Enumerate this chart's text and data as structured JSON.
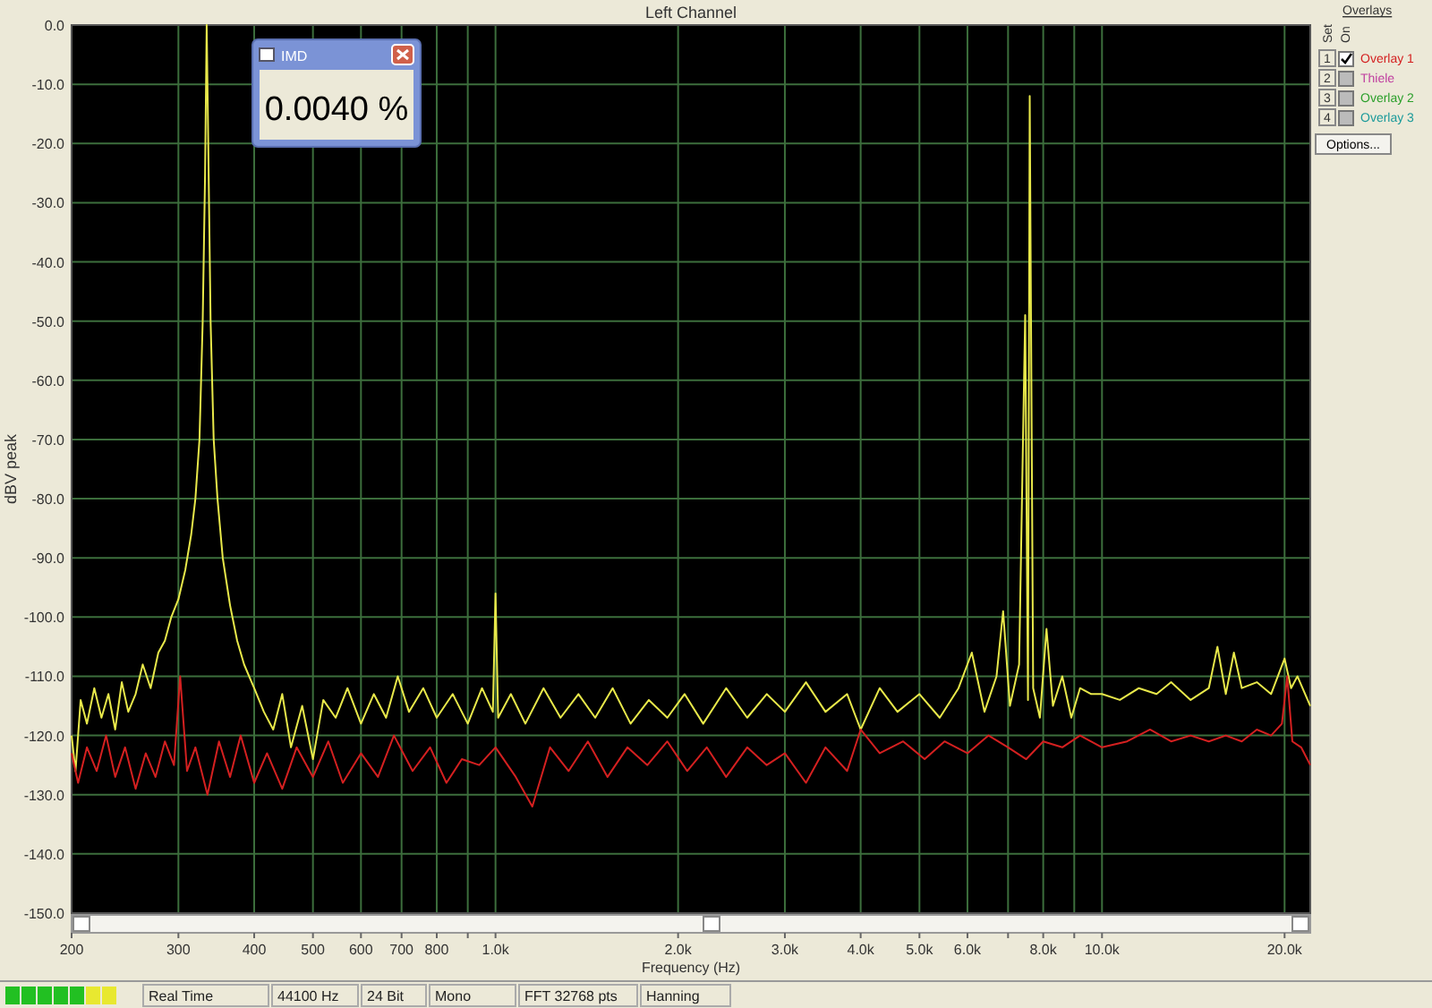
{
  "chart_data": {
    "type": "line",
    "title": "Left Channel",
    "xlabel": "Frequency (Hz)",
    "ylabel": "dBV peak",
    "log": "x",
    "grid": true,
    "legend": "top right",
    "marker": "none",
    "line_style": "solid",
    "xlim": [
      200,
      22050
    ],
    "ylim": [
      -150,
      0
    ],
    "xticks": [
      {
        "value": 200,
        "label": "200"
      },
      {
        "value": 300,
        "label": "300"
      },
      {
        "value": 400,
        "label": "400"
      },
      {
        "value": 500,
        "label": "500"
      },
      {
        "value": 600,
        "label": "600"
      },
      {
        "value": 700,
        "label": "700"
      },
      {
        "value": 800,
        "label": "800"
      },
      {
        "value": 900,
        "label": null
      },
      {
        "value": 1000,
        "label": "1.0k"
      },
      {
        "value": 2000,
        "label": "2.0k"
      },
      {
        "value": 3000,
        "label": "3.0k"
      },
      {
        "value": 4000,
        "label": "4.0k"
      },
      {
        "value": 5000,
        "label": "5.0k"
      },
      {
        "value": 6000,
        "label": "6.0k"
      },
      {
        "value": 7000,
        "label": null
      },
      {
        "value": 8000,
        "label": "8.0k"
      },
      {
        "value": 9000,
        "label": null
      },
      {
        "value": 10000,
        "label": "10.0k"
      },
      {
        "value": 20000,
        "label": "20.0k"
      }
    ],
    "yticks": [
      {
        "value": 0,
        "label": "0.0"
      },
      {
        "value": -10,
        "label": "-10.0"
      },
      {
        "value": -20,
        "label": "-20.0"
      },
      {
        "value": -30,
        "label": "-30.0"
      },
      {
        "value": -40,
        "label": "-40.0"
      },
      {
        "value": -50,
        "label": "-50.0"
      },
      {
        "value": -60,
        "label": "-60.0"
      },
      {
        "value": -70,
        "label": "-70.0"
      },
      {
        "value": -80,
        "label": "-80.0"
      },
      {
        "value": -90,
        "label": "-90.0"
      },
      {
        "value": -100,
        "label": "-100.0"
      },
      {
        "value": -110,
        "label": "-110.0"
      },
      {
        "value": -120,
        "label": "-120.0"
      },
      {
        "value": -130,
        "label": "-130.0"
      },
      {
        "value": -140,
        "label": "-140.0"
      },
      {
        "value": -150,
        "label": "-150.0"
      }
    ],
    "series": [
      {
        "color": "#e8e84a",
        "x": [
          200,
          203,
          207,
          212,
          218,
          224,
          230,
          236,
          242,
          248,
          255,
          262,
          270,
          278,
          285,
          292,
          300,
          308,
          315,
          320,
          325,
          329,
          332,
          334,
          336,
          339,
          343,
          348,
          355,
          365,
          375,
          385,
          400,
          415,
          430,
          445,
          460,
          480,
          500,
          520,
          545,
          570,
          600,
          630,
          660,
          690,
          720,
          760,
          800,
          850,
          900,
          950,
          990,
          1000,
          1010,
          1060,
          1120,
          1200,
          1280,
          1370,
          1460,
          1560,
          1670,
          1790,
          1920,
          2050,
          2200,
          2400,
          2600,
          2800,
          3000,
          3250,
          3500,
          3800,
          4000,
          4300,
          4600,
          5000,
          5400,
          5800,
          6100,
          6400,
          6700,
          6870,
          7050,
          7300,
          7470,
          7550,
          7600,
          7700,
          7900,
          8100,
          8300,
          8600,
          8900,
          9200,
          9600,
          10000,
          10700,
          11500,
          12300,
          13000,
          14000,
          15000,
          15500,
          16000,
          16500,
          17000,
          18000,
          19000,
          20000,
          20500,
          21000,
          22050
        ],
        "values": [
          -120,
          -126,
          -114,
          -118,
          -112,
          -117,
          -113,
          -119,
          -111,
          -116,
          -113,
          -108,
          -112,
          -106,
          -104,
          -100,
          -97,
          -92,
          -86,
          -80,
          -70,
          -50,
          -25,
          0,
          -20,
          -50,
          -70,
          -80,
          -90,
          -98,
          -104,
          -108,
          -112,
          -116,
          -119,
          -113,
          -122,
          -115,
          -124,
          -114,
          -117,
          -112,
          -118,
          -113,
          -117,
          -110,
          -116,
          -112,
          -117,
          -113,
          -118,
          -112,
          -116,
          -96,
          -117,
          -113,
          -118,
          -112,
          -117,
          -113,
          -117,
          -112,
          -118,
          -114,
          -117,
          -113,
          -118,
          -112,
          -117,
          -113,
          -116,
          -111,
          -116,
          -113,
          -119,
          -112,
          -116,
          -113,
          -117,
          -112,
          -106,
          -116,
          -110,
          -99,
          -115,
          -108,
          -49,
          -114,
          -12,
          -112,
          -117,
          -102,
          -115,
          -110,
          -117,
          -112,
          -113,
          -113,
          -114,
          -112,
          -113,
          -111,
          -114,
          -112,
          -105,
          -113,
          -106,
          -112,
          -111,
          -113,
          -107,
          -112,
          -110,
          -115
        ]
      },
      {
        "name": "Overlay 1",
        "color": "#d42020",
        "x": [
          200,
          205,
          212,
          220,
          228,
          236,
          245,
          255,
          265,
          275,
          285,
          295,
          302,
          310,
          320,
          335,
          350,
          365,
          380,
          400,
          420,
          445,
          470,
          500,
          530,
          560,
          600,
          640,
          680,
          730,
          780,
          830,
          880,
          940,
          1000,
          1080,
          1150,
          1230,
          1320,
          1420,
          1530,
          1650,
          1780,
          1920,
          2070,
          2230,
          2400,
          2600,
          2800,
          3000,
          3250,
          3500,
          3800,
          4000,
          4300,
          4700,
          5100,
          5500,
          6000,
          6500,
          7000,
          7500,
          8000,
          8600,
          9200,
          10000,
          11000,
          12000,
          13000,
          14000,
          15000,
          16000,
          17000,
          18000,
          19000,
          19800,
          20200,
          20600,
          21300,
          22050
        ],
        "values": [
          -123,
          -128,
          -122,
          -126,
          -120,
          -127,
          -122,
          -129,
          -123,
          -127,
          -121,
          -125,
          -110,
          -126,
          -122,
          -130,
          -121,
          -127,
          -120,
          -128,
          -123,
          -129,
          -122,
          -127,
          -121,
          -128,
          -123,
          -127,
          -120,
          -126,
          -122,
          -128,
          -124,
          -125,
          -122,
          -127,
          -132,
          -122,
          -126,
          -121,
          -127,
          -122,
          -125,
          -121,
          -126,
          -122,
          -127,
          -122,
          -125,
          -123,
          -128,
          -122,
          -126,
          -119,
          -123,
          -121,
          -124,
          -121,
          -123,
          -120,
          -122,
          -124,
          -121,
          -122,
          -120,
          -122,
          -121,
          -119,
          -121,
          -120,
          -121,
          -120,
          -121,
          -119,
          -120,
          -118,
          -110,
          -121,
          -122,
          -125
        ]
      }
    ],
    "annotations": [
      "IMD",
      "0.0040 %",
      "Overlays",
      "Set",
      "On",
      "1",
      "2",
      "3",
      "4",
      "Thiele",
      "Overlay 2",
      "Overlay 3",
      "Options...",
      "Real Time",
      "44100 Hz",
      "24 Bit",
      "Mono",
      "FFT 32768 pts",
      "Hanning"
    ]
  }
}
